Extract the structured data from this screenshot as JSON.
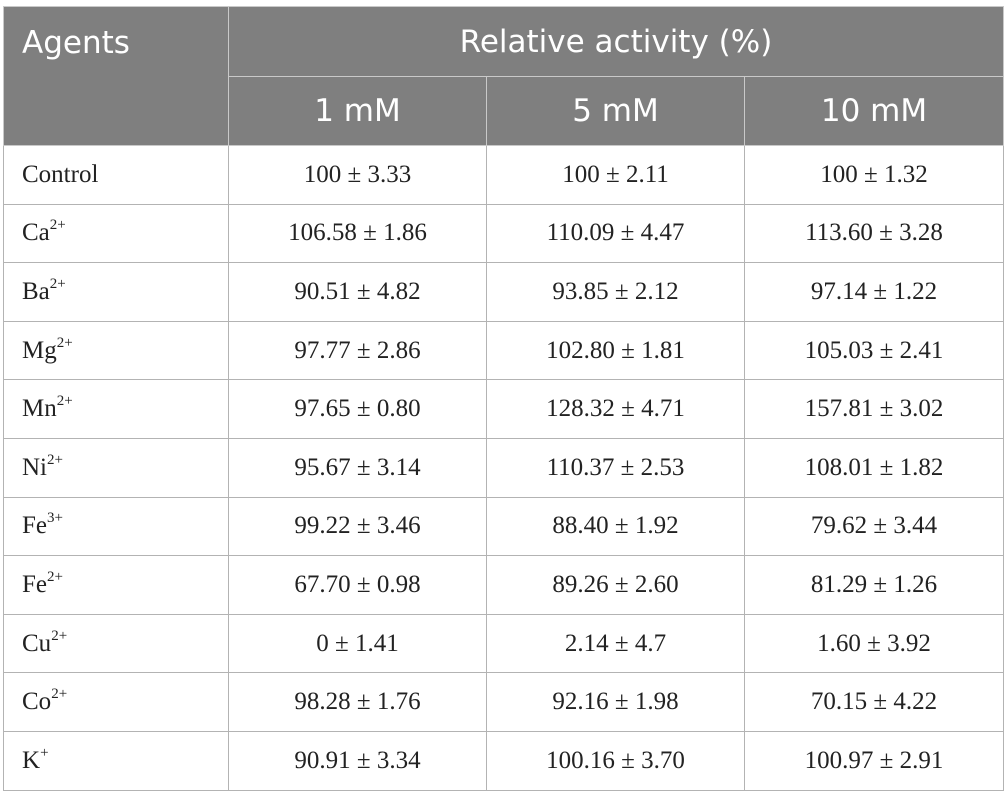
{
  "header": {
    "agents_label": "Agents",
    "group_label": "Relative activity (%)",
    "concentrations": [
      "1 mM",
      "5 mM",
      "10 mM"
    ]
  },
  "rows": [
    {
      "agent": "Control",
      "charge": "",
      "values": [
        "100 ± 3.33",
        "100 ± 2.11",
        "100 ± 1.32"
      ]
    },
    {
      "agent": "Ca",
      "charge": "2+",
      "values": [
        "106.58 ± 1.86",
        "110.09 ± 4.47",
        "113.60 ± 3.28"
      ]
    },
    {
      "agent": "Ba",
      "charge": "2+",
      "values": [
        "90.51 ± 4.82",
        "93.85 ± 2.12",
        "97.14 ± 1.22"
      ]
    },
    {
      "agent": "Mg",
      "charge": "2+",
      "values": [
        "97.77 ± 2.86",
        "102.80 ± 1.81",
        "105.03 ± 2.41"
      ]
    },
    {
      "agent": "Mn",
      "charge": "2+",
      "values": [
        "97.65 ± 0.80",
        "128.32 ± 4.71",
        "157.81 ± 3.02"
      ]
    },
    {
      "agent": "Ni",
      "charge": "2+",
      "values": [
        "95.67 ± 3.14",
        "110.37 ± 2.53",
        "108.01 ± 1.82"
      ]
    },
    {
      "agent": "Fe",
      "charge": "3+",
      "values": [
        "99.22 ± 3.46",
        "88.40 ± 1.92",
        "79.62 ± 3.44"
      ]
    },
    {
      "agent": "Fe",
      "charge": "2+",
      "values": [
        "67.70 ± 0.98",
        "89.26 ± 2.60",
        "81.29 ± 1.26"
      ]
    },
    {
      "agent": "Cu",
      "charge": "2+",
      "values": [
        "0 ± 1.41",
        "2.14 ± 4.7",
        "1.60 ± 3.92"
      ]
    },
    {
      "agent": "Co",
      "charge": "2+",
      "values": [
        "98.28 ± 1.76",
        "92.16 ± 1.98",
        "70.15 ± 4.22"
      ]
    },
    {
      "agent": "K",
      "charge": "+",
      "values": [
        "90.91 ± 3.34",
        "100.16 ± 3.70",
        "100.97 ± 2.91"
      ]
    }
  ]
}
